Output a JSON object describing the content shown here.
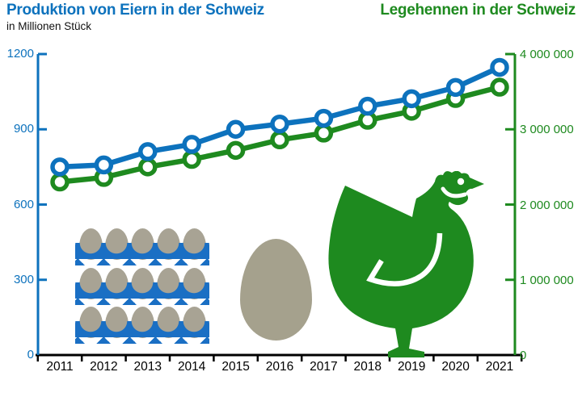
{
  "header": {
    "left_title": "Produktion von Eiern in der Schweiz",
    "left_subtitle": "in Millionen Stück",
    "right_title": "Legehennen in der Schweiz"
  },
  "colors": {
    "eggs_blue": "#0d72bd",
    "hens_green": "#1e8a1f",
    "axis_black": "#000000",
    "egg_beige": "#a5a18d",
    "carton_blue": "#1a6fc4",
    "carton_blue_dark": "#14518f",
    "marker_fill": "#ffffff"
  },
  "chart_data": {
    "type": "line",
    "categories": [
      "2011",
      "2012",
      "2013",
      "2014",
      "2015",
      "2016",
      "2017",
      "2018",
      "2019",
      "2020",
      "2021"
    ],
    "series": [
      {
        "name": "Produktion von Eiern in der Schweiz (in Millionen Stück)",
        "axis": "left",
        "color": "#0d72bd",
        "values": [
          750,
          758,
          811,
          840,
          900,
          921,
          944,
          992,
          1022,
          1067,
          1147
        ]
      },
      {
        "name": "Legehennen in der Schweiz",
        "axis": "right",
        "color": "#1e8a1f",
        "values": [
          2300000,
          2360000,
          2500000,
          2600000,
          2720000,
          2860000,
          2950000,
          3120000,
          3240000,
          3410000,
          3560000
        ]
      }
    ],
    "left_axis": {
      "range": [
        0,
        1200
      ],
      "ticks": [
        0,
        300,
        600,
        900,
        1200
      ],
      "labels": [
        "0",
        "300",
        "600",
        "900",
        "1200"
      ],
      "color": "#0d72bd"
    },
    "right_axis": {
      "range": [
        0,
        4000000
      ],
      "ticks": [
        0,
        1000000,
        2000000,
        3000000,
        4000000
      ],
      "labels": [
        "0",
        "1 000 000",
        "2 000 000",
        "3 000 000",
        "4 000 000"
      ],
      "color": "#1e8a1f"
    },
    "grid": false,
    "legend": "none (titles act as series labels)"
  },
  "decorations": {
    "egg_carton": {
      "rows": 3,
      "eggs_per_row": 5
    },
    "single_egg": "egg-icon",
    "hen": "hen-icon"
  }
}
